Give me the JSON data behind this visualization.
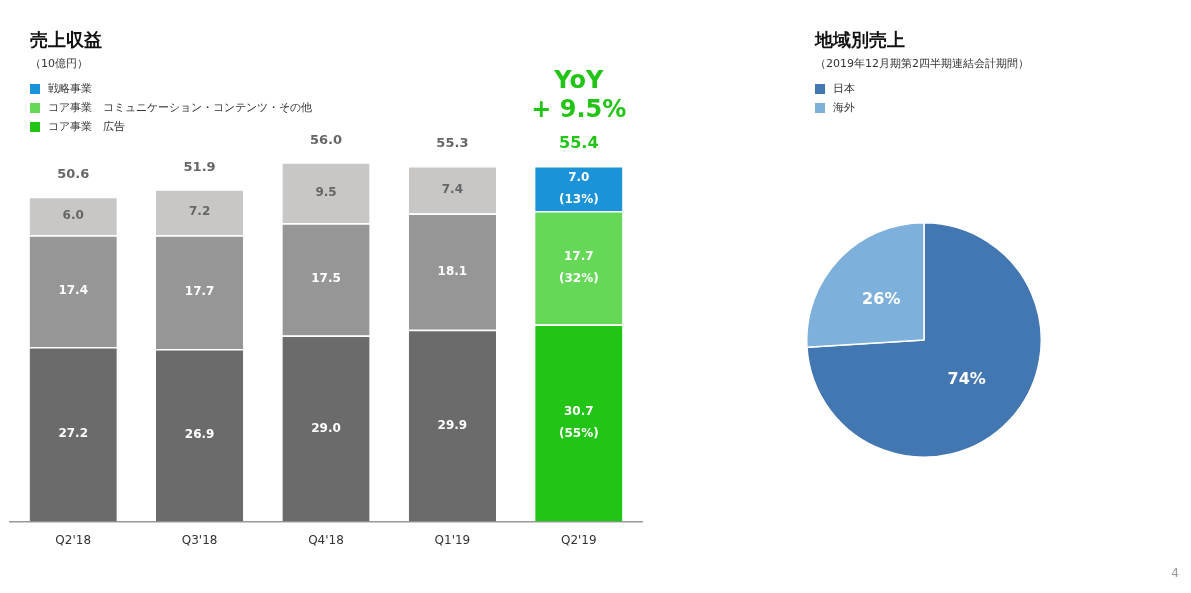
{
  "chart_data": [
    {
      "type": "bar",
      "title": "売上収益",
      "subtitle": "（10億円）",
      "stacked": true,
      "legend": "top left",
      "categories": [
        "Q2'18",
        "Q3'18",
        "Q4'18",
        "Q1'19",
        "Q2'19"
      ],
      "series": [
        {
          "name": "コア事業　広告",
          "color": "#22c416",
          "colors": [
            "#6b6b6b",
            "#6b6b6b",
            "#6b6b6b",
            "#6b6b6b",
            "#22c416"
          ],
          "values": [
            27.2,
            26.9,
            29.0,
            29.9,
            30.7
          ],
          "value_labels": [
            "27.2",
            "26.9",
            "29.0",
            "29.9",
            "30.7\n(55%)"
          ]
        },
        {
          "name": "コア事業　コミュニケーション・コンテンツ・その他",
          "color": "#66d858",
          "colors": [
            "#969696",
            "#969696",
            "#969696",
            "#969696",
            "#66d858"
          ],
          "values": [
            17.4,
            17.7,
            17.5,
            18.1,
            17.7
          ],
          "value_labels": [
            "17.4",
            "17.7",
            "17.5",
            "18.1",
            "17.7\n(32%)"
          ]
        },
        {
          "name": "戦略事業",
          "color": "#1a93d8",
          "colors": [
            "#c8c7c5",
            "#c8c7c5",
            "#c8c7c5",
            "#c8c7c5",
            "#1a93d8"
          ],
          "values": [
            6.0,
            7.2,
            9.5,
            7.4,
            7.0
          ],
          "value_labels": [
            "6.0",
            "7.2",
            "9.5",
            "7.4",
            "7.0\n(13%)"
          ]
        }
      ],
      "totals": [
        "50.6",
        "51.9",
        "56.0",
        "55.3",
        "55.4"
      ],
      "annotations": [
        "YoY\n+ 9.5%"
      ]
    },
    {
      "type": "pie",
      "title": "地域別売上",
      "subtitle": "（2019年12月期第2四半期連結会計期間）",
      "legend": "top left",
      "categories": [
        "日本",
        "海外"
      ],
      "values": [
        74,
        26
      ],
      "colors": [
        "#4277b1",
        "#7db0da"
      ],
      "value_labels": [
        "74%",
        "26%"
      ],
      "annotations": [
        "4"
      ]
    }
  ]
}
